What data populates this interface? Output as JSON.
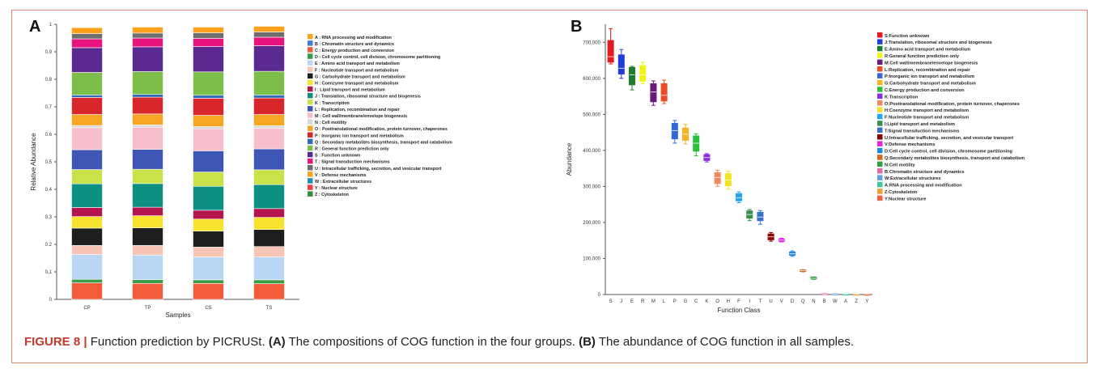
{
  "panel_a": {
    "letter": "A"
  },
  "panel_b": {
    "letter": "B"
  },
  "caption": {
    "figure": "FIGURE 8 |",
    "intro": "Function prediction by PICRUSt.",
    "a_label": "(A)",
    "a_text": "The compositions of COG function in the four groups.",
    "b_label": "(B)",
    "b_text": "The abundance of COG function in all samples."
  },
  "chart_data": [
    {
      "type": "bar",
      "stacked": true,
      "categories": [
        "CP",
        "TP",
        "CS",
        "TS"
      ],
      "xlabel": "Samples",
      "ylabel": "Relative Abundance",
      "ylim": [
        0,
        1
      ],
      "yticks": [
        "0",
        "0.1",
        "0.2",
        "0.3",
        "0.4",
        "0.5",
        "0.6",
        "0.7",
        "0.8",
        "0.9",
        "1"
      ],
      "legend_position": "right",
      "series": [
        {
          "name": "A : RNA processing and modification",
          "color": "#ff9f1a",
          "values": [
            0.0,
            0.0,
            0.0,
            0.0
          ]
        },
        {
          "name": "B : Chromatin structure and dynamics",
          "color": "#3a7fd5",
          "values": [
            0.0,
            0.0,
            0.0,
            0.0
          ]
        },
        {
          "name": "C : Energy production and conversion",
          "color": "#f25c3a",
          "values": [
            0.06,
            0.058,
            0.058,
            0.057
          ]
        },
        {
          "name": "D : Cell cycle control, cell division, chromosome partitioning",
          "color": "#3d9b47",
          "values": [
            0.013,
            0.014,
            0.013,
            0.014
          ]
        },
        {
          "name": "E : Amino acid transport and metabolism",
          "color": "#b9d7f5",
          "values": [
            0.09,
            0.089,
            0.083,
            0.083
          ]
        },
        {
          "name": "F : Nucleotide transport and metabolism",
          "color": "#f7c4b6",
          "values": [
            0.033,
            0.035,
            0.036,
            0.038
          ]
        },
        {
          "name": "G : Carbohydrate transport and metabolism",
          "color": "#1e1e1e",
          "values": [
            0.063,
            0.064,
            0.058,
            0.062
          ]
        },
        {
          "name": "H : Coenzyme transport and metabolism",
          "color": "#f7e22e",
          "values": [
            0.042,
            0.044,
            0.044,
            0.044
          ]
        },
        {
          "name": "I : Lipid transport and metabolism",
          "color": "#b5154f",
          "values": [
            0.033,
            0.031,
            0.032,
            0.032
          ]
        },
        {
          "name": "J : Translation, ribosomal structure and biogenesis",
          "color": "#0d8f82",
          "values": [
            0.086,
            0.086,
            0.087,
            0.087
          ]
        },
        {
          "name": "K : Transcription",
          "color": "#c9e24a",
          "values": [
            0.052,
            0.052,
            0.052,
            0.054
          ]
        },
        {
          "name": "L : Replication, recombination and repair",
          "color": "#3e56b4",
          "values": [
            0.072,
            0.072,
            0.077,
            0.076
          ]
        },
        {
          "name": "M : Cell wall/membrane/envelope biogenesis",
          "color": "#f7bfcc",
          "values": [
            0.08,
            0.081,
            0.08,
            0.075
          ]
        },
        {
          "name": "N : Cell motility",
          "color": "#d9d9d9",
          "values": [
            0.008,
            0.008,
            0.008,
            0.009
          ]
        },
        {
          "name": "O : Posttranslational modification, protein turnover, chaperones",
          "color": "#f5a623",
          "values": [
            0.04,
            0.04,
            0.041,
            0.041
          ]
        },
        {
          "name": "P : Inorganic ion transport and metabolism",
          "color": "#d9262b",
          "values": [
            0.062,
            0.061,
            0.062,
            0.06
          ]
        },
        {
          "name": "Q : Secondary metabolites biosynthesis, transport and catabolism",
          "color": "#2e6bb8",
          "values": [
            0.009,
            0.01,
            0.011,
            0.011
          ]
        },
        {
          "name": "R : General function prediction only",
          "color": "#7dbd4a",
          "values": [
            0.082,
            0.083,
            0.085,
            0.086
          ]
        },
        {
          "name": "S : Function unknown",
          "color": "#5b2a90",
          "values": [
            0.09,
            0.09,
            0.092,
            0.093
          ]
        },
        {
          "name": "T : Signal transduction mechanisms",
          "color": "#e8137c",
          "values": [
            0.032,
            0.032,
            0.03,
            0.031
          ]
        },
        {
          "name": "U : Intracellular trafficking, secretion, and vesicular transport",
          "color": "#6e6e6e",
          "values": [
            0.019,
            0.018,
            0.02,
            0.019
          ]
        },
        {
          "name": "V : Defense mechanisms",
          "color": "#ff9f1a",
          "values": [
            0.022,
            0.022,
            0.021,
            0.021
          ]
        },
        {
          "name": "W : Extracellular structures",
          "color": "#1f8fb0",
          "values": [
            0.001,
            0.001,
            0.001,
            0.001
          ]
        },
        {
          "name": "Y : Nuclear structure",
          "color": "#ee3f3f",
          "values": [
            0.0,
            0.0,
            0.0,
            0.0
          ]
        },
        {
          "name": "Z : Cytoskeleton",
          "color": "#2f8f3a",
          "values": [
            0.0,
            0.0,
            0.0,
            0.0
          ]
        }
      ]
    },
    {
      "type": "box",
      "categories": [
        "S",
        "J",
        "E",
        "R",
        "M",
        "L",
        "P",
        "G",
        "C",
        "K",
        "O",
        "H",
        "F",
        "I",
        "T",
        "U",
        "V",
        "D",
        "Q",
        "N",
        "B",
        "W",
        "A",
        "Z",
        "Y"
      ],
      "xlabel": "Function Class",
      "ylabel": "Abundance",
      "ylim": [
        0,
        750000
      ],
      "yticks": [
        "0",
        "100,000",
        "200,000",
        "300,000",
        "400,000",
        "500,000",
        "600,000",
        "700,000"
      ],
      "legend_position": "right",
      "boxes": [
        {
          "cat": "S",
          "color": "#e41a1c",
          "min": 640000,
          "q1": 645000,
          "median": 660000,
          "q3": 705000,
          "max": 738000
        },
        {
          "cat": "J",
          "color": "#1f3fd6",
          "min": 600000,
          "q1": 612000,
          "median": 628000,
          "q3": 665000,
          "max": 680000
        },
        {
          "cat": "E",
          "color": "#1a7f2a",
          "min": 568000,
          "q1": 582000,
          "median": 610000,
          "q3": 630000,
          "max": 633000
        },
        {
          "cat": "R",
          "color": "#f2f21a",
          "min": 585000,
          "q1": 592000,
          "median": 610000,
          "q3": 635000,
          "max": 645000
        },
        {
          "cat": "M",
          "color": "#6a1b7a",
          "min": 525000,
          "q1": 535000,
          "median": 562000,
          "q3": 585000,
          "max": 593000
        },
        {
          "cat": "L",
          "color": "#f04a24",
          "min": 530000,
          "q1": 537000,
          "median": 553000,
          "q3": 585000,
          "max": 595000
        },
        {
          "cat": "P",
          "color": "#3367d6",
          "min": 420000,
          "q1": 432000,
          "median": 455000,
          "q3": 475000,
          "max": 483000
        },
        {
          "cat": "G",
          "color": "#f5b41e",
          "min": 418000,
          "q1": 428000,
          "median": 445000,
          "q3": 462000,
          "max": 472000
        },
        {
          "cat": "C",
          "color": "#2bbf3a",
          "min": 385000,
          "q1": 398000,
          "median": 420000,
          "q3": 440000,
          "max": 446000
        },
        {
          "cat": "K",
          "color": "#8a2be2",
          "min": 368000,
          "q1": 372000,
          "median": 380000,
          "q3": 388000,
          "max": 391000
        },
        {
          "cat": "O",
          "color": "#f08a5d",
          "min": 300000,
          "q1": 308000,
          "median": 325000,
          "q3": 338000,
          "max": 345000
        },
        {
          "cat": "H",
          "color": "#f2e41e",
          "min": 292000,
          "q1": 302000,
          "median": 318000,
          "q3": 335000,
          "max": 342000
        },
        {
          "cat": "F",
          "color": "#1ea7f0",
          "min": 255000,
          "q1": 260000,
          "median": 268000,
          "q3": 280000,
          "max": 285000
        },
        {
          "cat": "I",
          "color": "#3a8f4a",
          "min": 205000,
          "q1": 212000,
          "median": 222000,
          "q3": 232000,
          "max": 236000
        },
        {
          "cat": "T",
          "color": "#3a6fc9",
          "min": 195000,
          "q1": 205000,
          "median": 215000,
          "q3": 228000,
          "max": 233000
        },
        {
          "cat": "U",
          "color": "#8b0000",
          "min": 148000,
          "q1": 152000,
          "median": 160000,
          "q3": 168000,
          "max": 172000
        },
        {
          "cat": "V",
          "color": "#e91ee0",
          "min": 146000,
          "q1": 148000,
          "median": 151000,
          "q3": 154000,
          "max": 156000
        },
        {
          "cat": "D",
          "color": "#1e88e5",
          "min": 106000,
          "q1": 109000,
          "median": 113000,
          "q3": 118000,
          "max": 121000
        },
        {
          "cat": "Q",
          "color": "#d2691e",
          "min": 63000,
          "q1": 64000,
          "median": 66000,
          "q3": 68000,
          "max": 69000
        },
        {
          "cat": "N",
          "color": "#2e9e3e",
          "min": 42000,
          "q1": 43000,
          "median": 45000,
          "q3": 48000,
          "max": 49000
        },
        {
          "cat": "B",
          "color": "#e66aa8",
          "min": 1000,
          "q1": 1500,
          "median": 2000,
          "q3": 2500,
          "max": 3000
        },
        {
          "cat": "W",
          "color": "#5fa0e0",
          "min": 1000,
          "q1": 1200,
          "median": 1600,
          "q3": 2000,
          "max": 2400
        },
        {
          "cat": "A",
          "color": "#3bc9a0",
          "min": 500,
          "q1": 800,
          "median": 1000,
          "q3": 1300,
          "max": 1600
        },
        {
          "cat": "Z",
          "color": "#f0a030",
          "min": 300,
          "q1": 500,
          "median": 700,
          "q3": 900,
          "max": 1100
        },
        {
          "cat": "Y",
          "color": "#f46040",
          "min": 200,
          "q1": 300,
          "median": 500,
          "q3": 700,
          "max": 900
        }
      ],
      "legend": [
        {
          "name": "S:Function unknown",
          "color": "#e41a1c"
        },
        {
          "name": "J:Translation, ribosomal structure and biogenesis",
          "color": "#1f3fd6"
        },
        {
          "name": "E:Amino acid transport and metabolism",
          "color": "#1a7f2a"
        },
        {
          "name": "R:General function prediction only",
          "color": "#f2f21a"
        },
        {
          "name": "M:Cell wall/membrane/envelope biogenesis",
          "color": "#6a1b7a"
        },
        {
          "name": "L:Replication, recombination and repair",
          "color": "#f04a24"
        },
        {
          "name": "P:Inorganic ion transport and metabolism",
          "color": "#3367d6"
        },
        {
          "name": "G:Carbohydrate transport and metabolism",
          "color": "#f5b41e"
        },
        {
          "name": "C:Energy production and conversion",
          "color": "#2bbf3a"
        },
        {
          "name": "K:Transcription",
          "color": "#8a2be2"
        },
        {
          "name": "O:Posttranslational modification, protein turnover, chaperones",
          "color": "#f08a5d"
        },
        {
          "name": "H:Coenzyme transport and metabolism",
          "color": "#f2e41e"
        },
        {
          "name": "F:Nucleotide transport and metabolism",
          "color": "#1ea7f0"
        },
        {
          "name": "I:Lipid transport and metabolism",
          "color": "#3a8f4a"
        },
        {
          "name": "T:Signal transduction mechanisms",
          "color": "#3a6fc9"
        },
        {
          "name": "U:Intracellular trafficking, secretion, and vesicular transport",
          "color": "#8b0000"
        },
        {
          "name": "V:Defense mechanisms",
          "color": "#e91ee0"
        },
        {
          "name": "D:Cell cycle control, cell division, chromosome partitioning",
          "color": "#1e88e5"
        },
        {
          "name": "Q:Secondary metabolites biosynthesis, transport and catabolism",
          "color": "#d2691e"
        },
        {
          "name": "N:Cell motility",
          "color": "#2e9e3e"
        },
        {
          "name": "B:Chromatin structure and dynamics",
          "color": "#e66aa8"
        },
        {
          "name": "W:Extracellular structures",
          "color": "#5fa0e0"
        },
        {
          "name": "A:RNA processing and modification",
          "color": "#3bc9a0"
        },
        {
          "name": "Z:Cytoskeleton",
          "color": "#f0a030"
        },
        {
          "name": "Y:Nuclear structure",
          "color": "#f46040"
        }
      ]
    }
  ]
}
